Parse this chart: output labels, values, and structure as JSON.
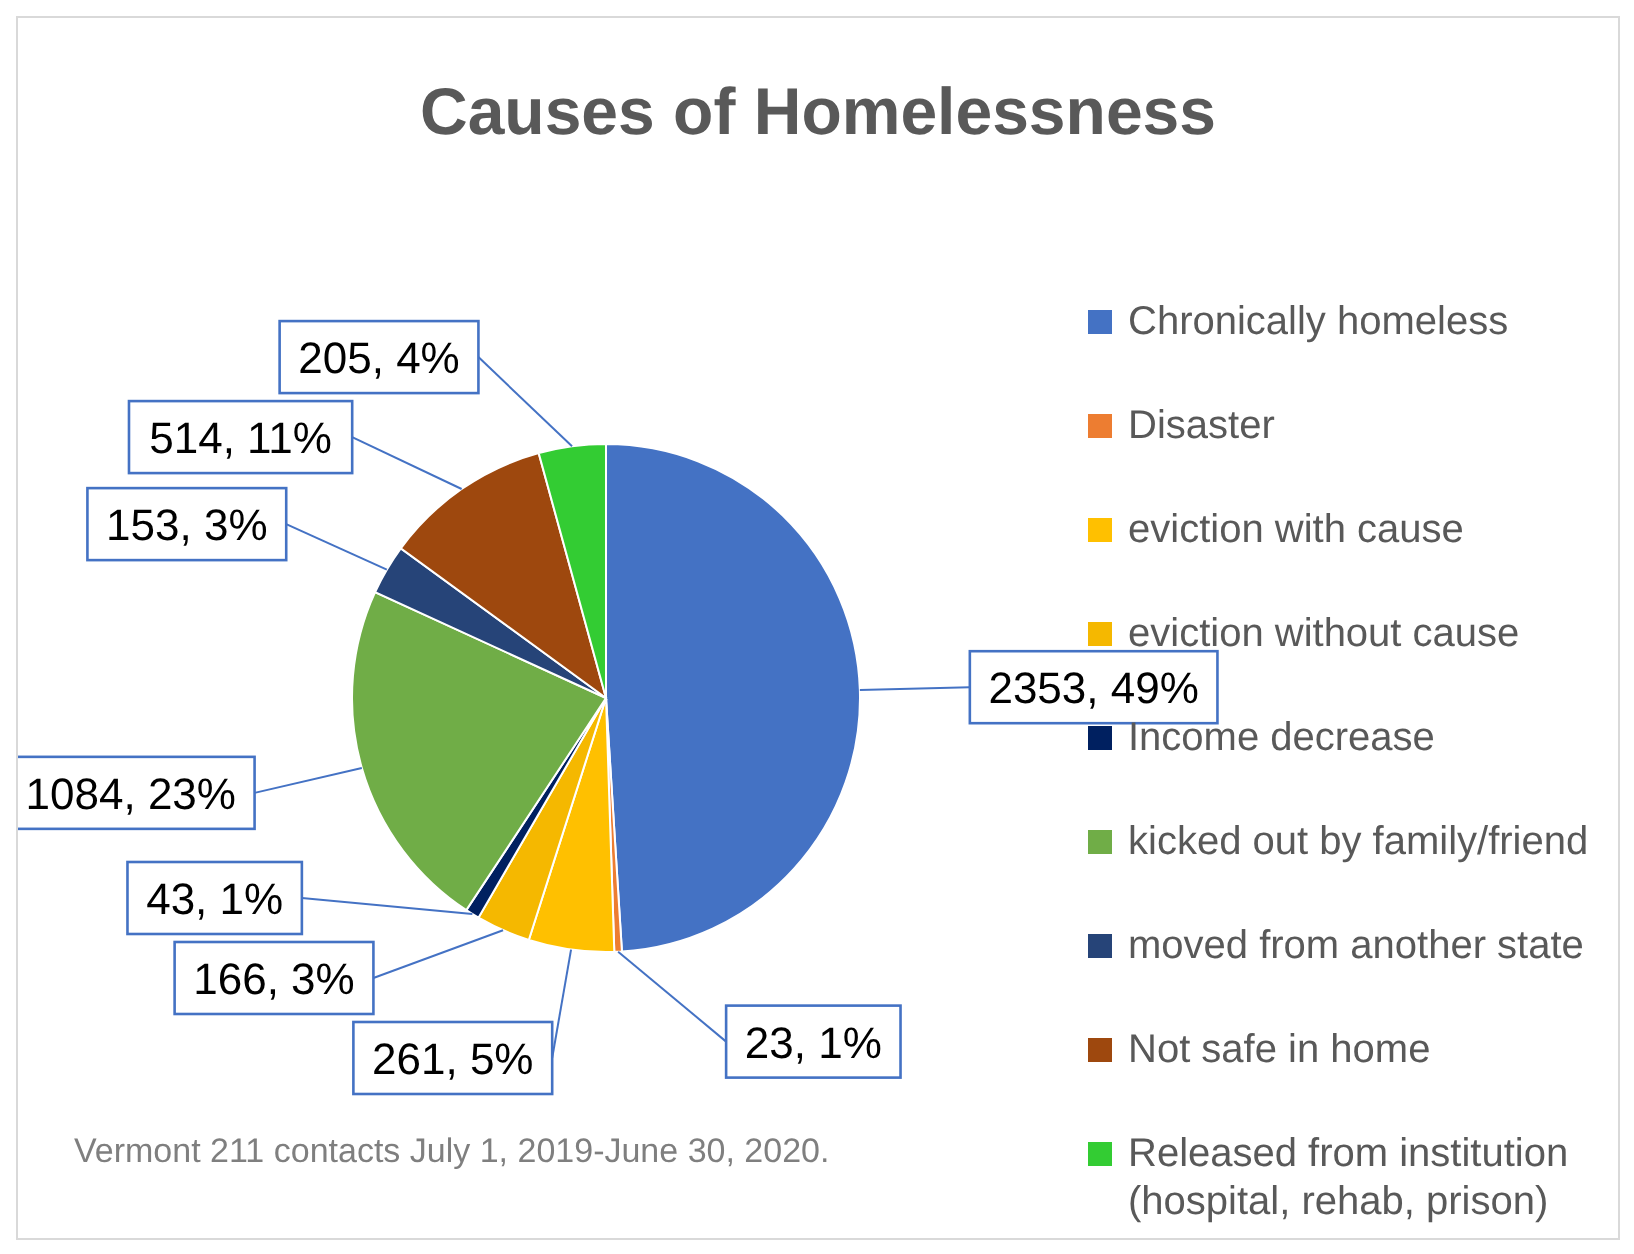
{
  "chart_data": {
    "type": "pie",
    "title": "Causes of Homelessness",
    "categories": [
      "Chronically homeless",
      "Disaster",
      "eviction with cause",
      "eviction without cause",
      "Income decrease",
      "kicked out by family/friend",
      "moved from another state",
      "Not safe in home",
      "Released from institution (hospital, rehab, prison)"
    ],
    "values": [
      2353,
      23,
      261,
      166,
      43,
      1084,
      153,
      514,
      205
    ],
    "colors": [
      "#4472c4",
      "#ed7d31",
      "#ffc000",
      "#f5b800",
      "#002060",
      "#70ad47",
      "#264478",
      "#9e480e",
      "#33cc33"
    ],
    "value_labels": [
      "2353, 49%",
      "23, 1%",
      "261, 5%",
      "166, 3%",
      "43, 1%",
      "1084, 23%",
      "153, 3%",
      "514, 11%",
      "205, 4%"
    ],
    "legend": "right",
    "annotations": [
      "Vermont 211 contacts July 1, 2019-June 30, 2020."
    ]
  }
}
